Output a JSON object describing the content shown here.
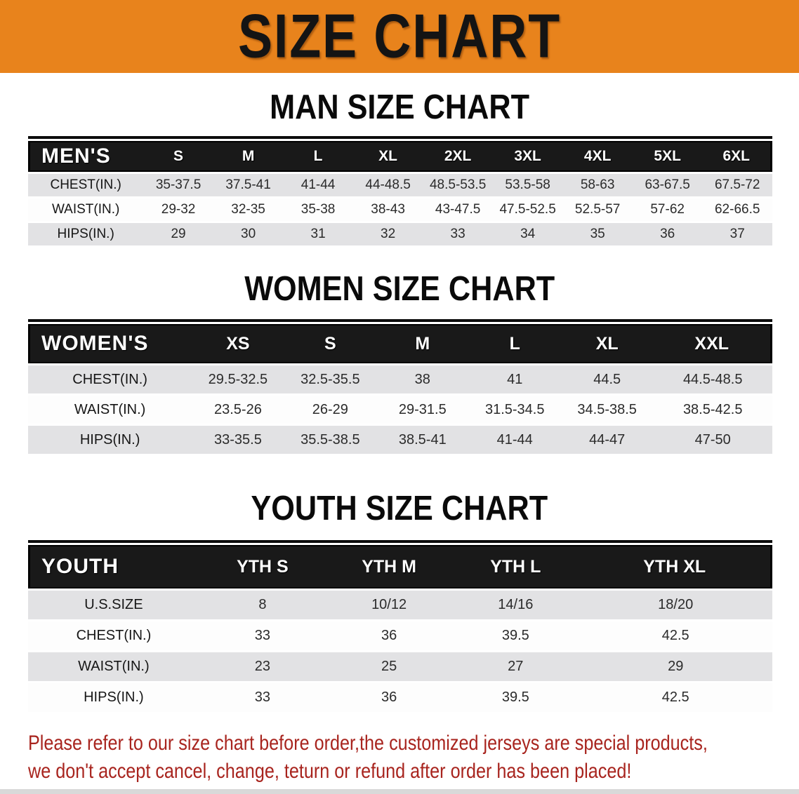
{
  "banner": {
    "title": "SIZE CHART"
  },
  "theme": {
    "banner_bg": "#E8831C",
    "header_bar_bg": "#191919",
    "shaded_row_bg": "#E2E2E4",
    "footer_text_color": "#A8241E"
  },
  "sections": [
    {
      "title": "MAN SIZE CHART",
      "header_label": "MEN'S",
      "columns": [
        "S",
        "M",
        "L",
        "XL",
        "2XL",
        "3XL",
        "4XL",
        "5XL",
        "6XL"
      ],
      "rows": [
        {
          "label": "CHEST(IN.)",
          "values": [
            "35-37.5",
            "37.5-41",
            "41-44",
            "44-48.5",
            "48.5-53.5",
            "53.5-58",
            "58-63",
            "63-67.5",
            "67.5-72"
          ]
        },
        {
          "label": "WAIST(IN.)",
          "values": [
            "29-32",
            "32-35",
            "35-38",
            "38-43",
            "43-47.5",
            "47.5-52.5",
            "52.5-57",
            "57-62",
            "62-66.5"
          ]
        },
        {
          "label": "HIPS(IN.)",
          "values": [
            "29",
            "30",
            "31",
            "32",
            "33",
            "34",
            "35",
            "36",
            "37"
          ]
        }
      ]
    },
    {
      "title": "WOMEN SIZE CHART",
      "header_label": "WOMEN'S",
      "columns": [
        "XS",
        "S",
        "M",
        "L",
        "XL",
        "XXL"
      ],
      "rows": [
        {
          "label": "CHEST(IN.)",
          "values": [
            "29.5-32.5",
            "32.5-35.5",
            "38",
            "41",
            "44.5",
            "44.5-48.5"
          ]
        },
        {
          "label": "WAIST(IN.)",
          "values": [
            "23.5-26",
            "26-29",
            "29-31.5",
            "31.5-34.5",
            "34.5-38.5",
            "38.5-42.5"
          ]
        },
        {
          "label": "HIPS(IN.)",
          "values": [
            "33-35.5",
            "35.5-38.5",
            "38.5-41",
            "41-44",
            "44-47",
            "47-50"
          ]
        }
      ]
    },
    {
      "title": "YOUTH SIZE CHART",
      "header_label": "YOUTH",
      "columns": [
        "YTH S",
        "YTH M",
        "YTH L",
        "YTH XL"
      ],
      "rows": [
        {
          "label": "U.S.SIZE",
          "values": [
            "8",
            "10/12",
            "14/16",
            "18/20"
          ]
        },
        {
          "label": "CHEST(IN.)",
          "values": [
            "33",
            "36",
            "39.5",
            "42.5"
          ]
        },
        {
          "label": "WAIST(IN.)",
          "values": [
            "23",
            "25",
            "27",
            "29"
          ]
        },
        {
          "label": "HIPS(IN.)",
          "values": [
            "33",
            "36",
            "39.5",
            "42.5"
          ]
        }
      ]
    }
  ],
  "footer": {
    "line1": "Please refer to our size chart before order,the customized jerseys are special products,",
    "line2": "we don't accept cancel, change, teturn or refund after order has been placed!"
  }
}
